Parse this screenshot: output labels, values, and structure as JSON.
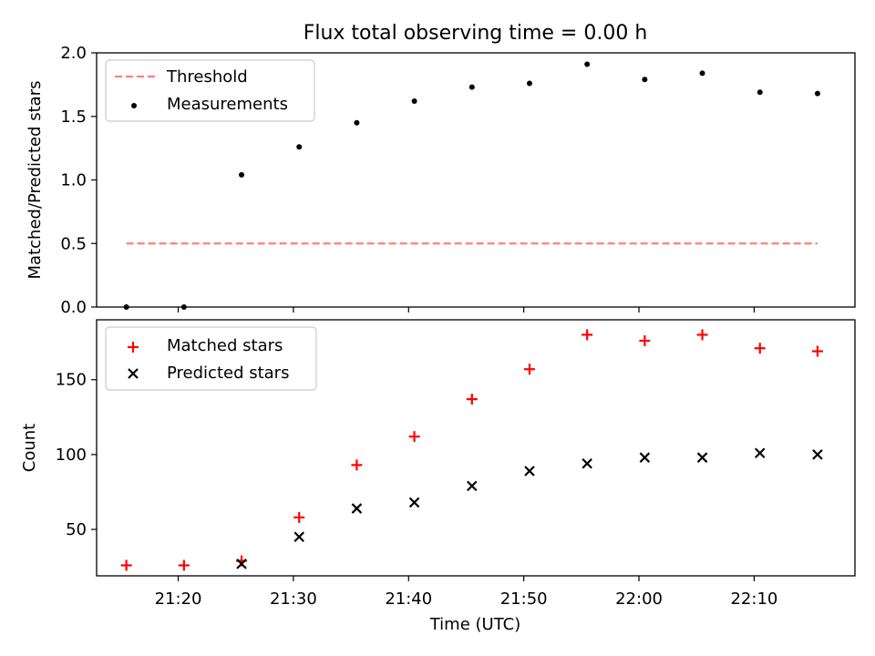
{
  "title": "Flux total observing time = 0.00 h",
  "xlabel": "Time (UTC)",
  "x_tick_labels": [
    "21:20",
    "21:30",
    "21:40",
    "21:50",
    "22:00",
    "22:10"
  ],
  "chart_data": [
    {
      "type": "scatter",
      "title": "Flux total observing time = 0.00 h",
      "xlabel": "",
      "ylabel": "Matched/Predicted stars",
      "ylim": [
        0,
        2.0
      ],
      "y_ticks": [
        0.0,
        0.5,
        1.0,
        1.5,
        2.0
      ],
      "y_tick_labels": [
        "0.0",
        "0.5",
        "1.0",
        "1.5",
        "2.0"
      ],
      "x_time_range": [
        "21:12:55",
        "22:18:45"
      ],
      "x": [
        "21:15:30",
        "21:20:30",
        "21:25:30",
        "21:30:30",
        "21:35:30",
        "21:40:30",
        "21:45:30",
        "21:50:30",
        "21:55:30",
        "22:00:30",
        "22:05:30",
        "22:10:30",
        "22:15:30"
      ],
      "legend_position": "upper left",
      "grid": false,
      "series": [
        {
          "name": "Threshold",
          "kind": "line",
          "style": "dashed",
          "color": "#ff7f7f",
          "x": [
            "21:15:30",
            "22:15:30"
          ],
          "values": [
            0.5,
            0.5
          ]
        },
        {
          "name": "Measurements",
          "kind": "scatter",
          "marker": "dot",
          "color": "#000000",
          "values": [
            0.0,
            0.0,
            1.04,
            1.26,
            1.45,
            1.62,
            1.73,
            1.76,
            1.91,
            1.79,
            1.84,
            1.69,
            1.68
          ]
        }
      ]
    },
    {
      "type": "scatter",
      "xlabel": "Time (UTC)",
      "ylabel": "Count",
      "ylim": [
        19,
        190
      ],
      "y_ticks": [
        50,
        100,
        150
      ],
      "y_tick_labels": [
        "50",
        "100",
        "150"
      ],
      "x_time_range": [
        "21:12:55",
        "22:18:45"
      ],
      "x": [
        "21:15:30",
        "21:20:30",
        "21:25:30",
        "21:30:30",
        "21:35:30",
        "21:40:30",
        "21:45:30",
        "21:50:30",
        "21:55:30",
        "22:00:30",
        "22:05:30",
        "22:10:30",
        "22:15:30"
      ],
      "x_ticks": [
        "21:20",
        "21:30",
        "21:40",
        "21:50",
        "22:00",
        "22:10"
      ],
      "legend_position": "upper left",
      "grid": false,
      "series": [
        {
          "name": "Matched stars",
          "marker": "plus",
          "color": "#ff0000",
          "values": [
            26,
            26,
            29,
            58,
            93,
            112,
            137,
            157,
            180,
            176,
            180,
            171,
            169
          ]
        },
        {
          "name": "Predicted stars",
          "marker": "x",
          "color": "#000000",
          "values": [
            null,
            null,
            27,
            45,
            64,
            68,
            79,
            89,
            94,
            98,
            98,
            101,
            100
          ]
        }
      ]
    }
  ]
}
